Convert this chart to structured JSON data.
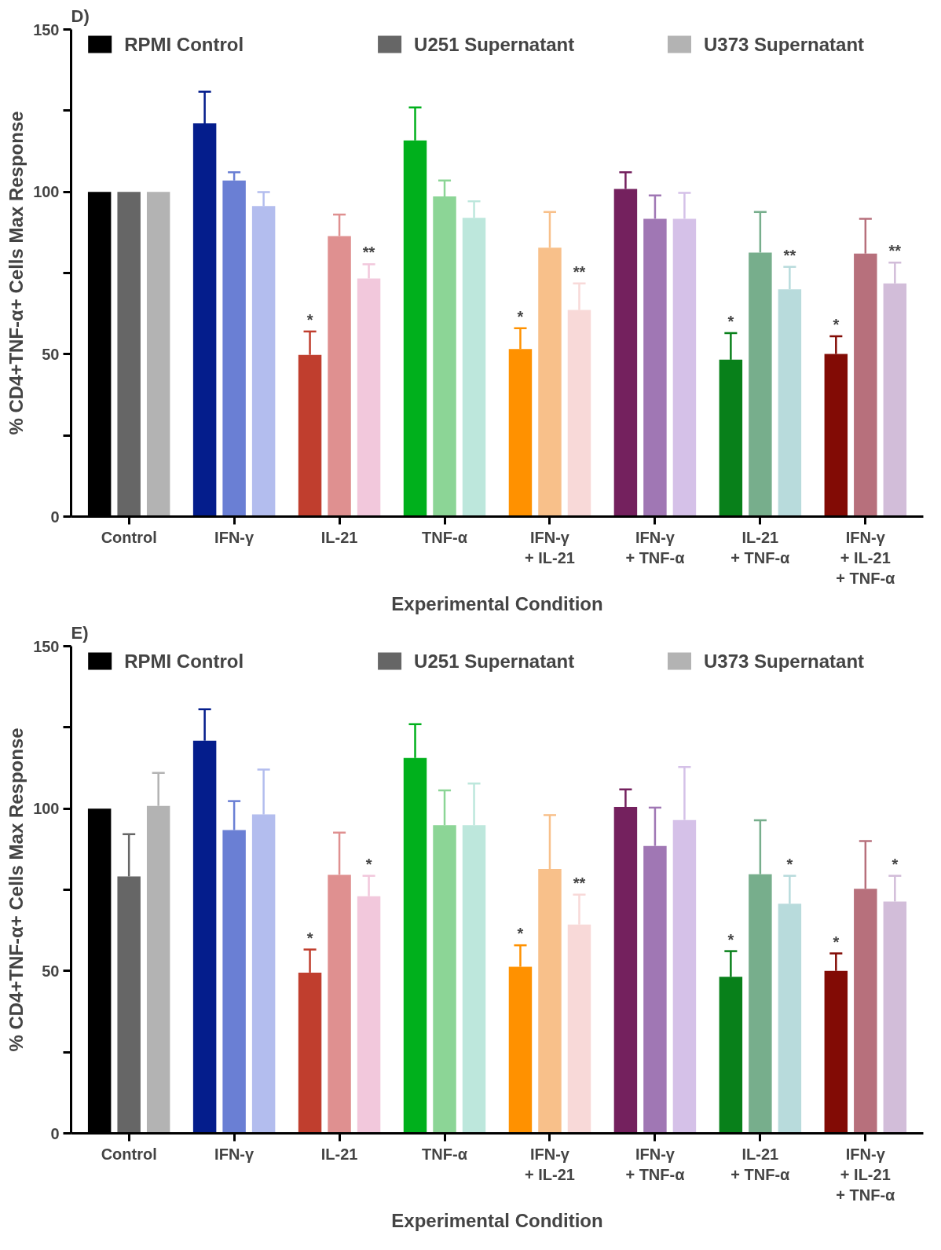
{
  "chart_data": [
    {
      "type": "bar",
      "title": "D)",
      "xlabel": "Experimental Condition",
      "ylabel": "% CD4+TNF-α+ Cells Max Response",
      "categories": [
        "Control",
        "IFN-γ",
        "IL-21",
        "TNF-α",
        "IFN-γ\n+ IL-21",
        "IFN-γ\n+ TNF-α",
        "IL-21\n+ TNF-α",
        "IFN-γ\n+ IL-21\n+ TNF-α"
      ],
      "ylim": [
        0,
        150
      ],
      "yticks": [
        0,
        {
          "value": 25,
          "label": null
        },
        50,
        {
          "value": 75,
          "label": null
        },
        100,
        {
          "value": 125,
          "label": null
        },
        150
      ],
      "grid": false,
      "legend": "top",
      "series": [
        {
          "name": "RPMI Control",
          "color": "#000000",
          "colors": [
            "#000000",
            "#041d8c",
            "#c03e2e",
            "#00b01c",
            "#ff9100",
            "#74215e",
            "#08801a",
            "#820b05"
          ],
          "values": [
            100,
            121.1,
            49.8,
            115.8,
            51.6,
            100.9,
            48.3,
            50.1
          ],
          "errors": [
            null,
            [
              121.1,
              130.8
            ],
            [
              49.8,
              57
            ],
            [
              115.8,
              126
            ],
            [
              51.6,
              58
            ],
            [
              100.9,
              106
            ],
            [
              48.3,
              56.5
            ],
            [
              50.1,
              55.5
            ]
          ],
          "value_labels": [
            null,
            null,
            "*",
            null,
            "*",
            null,
            "*",
            "*"
          ]
        },
        {
          "name": "U251 Supernatant",
          "color": "#666666",
          "colors": [
            "#666666",
            "#6a7fd4",
            "#df9090",
            "#8cd596",
            "#f8c08a",
            "#a077b4",
            "#77ae8c",
            "#b7707c"
          ],
          "values": [
            100,
            103.5,
            86.4,
            98.6,
            82.8,
            91.7,
            81.3,
            81
          ],
          "errors": [
            null,
            [
              103.5,
              106
            ],
            [
              86.4,
              93
            ],
            [
              98.6,
              103.5
            ],
            [
              82.8,
              93.8
            ],
            [
              91.7,
              98.9
            ],
            [
              81.3,
              93.8
            ],
            [
              81,
              91.7
            ]
          ]
        },
        {
          "name": "U373 Supernatant",
          "color": "#b3b3b3",
          "colors": [
            "#b3b3b3",
            "#b3bdee",
            "#f2c8dc",
            "#bde7dc",
            "#f8d9d8",
            "#d5c1e8",
            "#b8dbdc",
            "#d2bdd9"
          ],
          "values": [
            100,
            95.6,
            73.3,
            92,
            63.6,
            91.7,
            70,
            71.8
          ],
          "errors": [
            null,
            [
              95.6,
              99.9
            ],
            [
              73.3,
              77.7
            ],
            [
              92,
              97.1
            ],
            [
              63.6,
              71.8
            ],
            [
              91.7,
              99.7
            ],
            [
              70,
              76.9
            ],
            [
              71.8,
              78.2
            ]
          ],
          "value_labels": [
            null,
            null,
            "**",
            null,
            "**",
            null,
            "**",
            "**"
          ]
        }
      ]
    },
    {
      "type": "bar",
      "title": "E)",
      "xlabel": "Experimental Condition",
      "ylabel": "% CD4+TNF-α+ Cells Max Response",
      "categories": [
        "Control",
        "IFN-γ",
        "IL-21",
        "TNF-α",
        "IFN-γ\n+ IL-21",
        "IFN-γ\n+ TNF-α",
        "IL-21\n+ TNF-α",
        "IFN-γ\n+ IL-21\n+ TNF-α"
      ],
      "ylim": [
        0,
        150
      ],
      "yticks": [
        0,
        {
          "value": 25,
          "label": null
        },
        50,
        {
          "value": 75,
          "label": null
        },
        100,
        {
          "value": 125,
          "label": null
        },
        150
      ],
      "grid": false,
      "legend": "top",
      "series": [
        {
          "name": "RPMI Control",
          "color": "#000000",
          "colors": [
            "#000000",
            "#041d8c",
            "#c03e2e",
            "#00b01c",
            "#ff9100",
            "#74215e",
            "#08801a",
            "#820b05"
          ],
          "values": [
            100,
            120.9,
            49.5,
            115.6,
            51.3,
            100.5,
            48.2,
            50
          ],
          "errors": [
            null,
            [
              120.9,
              130.6
            ],
            [
              49.5,
              56.6
            ],
            [
              115.6,
              126
            ],
            [
              51.3,
              57.9
            ],
            [
              100.5,
              105.9
            ],
            [
              48.2,
              56.1
            ],
            [
              50,
              55.4
            ]
          ],
          "value_labels": [
            null,
            null,
            "*",
            null,
            "*",
            null,
            "*",
            "*"
          ]
        },
        {
          "name": "U251 Supernatant",
          "color": "#666666",
          "colors": [
            "#666666",
            "#6a7fd4",
            "#df9090",
            "#8cd596",
            "#f8c08a",
            "#a077b4",
            "#77ae8c",
            "#b7707c"
          ],
          "values": [
            79.1,
            93.4,
            79.6,
            94.9,
            81.4,
            88.5,
            79.8,
            75.3
          ],
          "errors": [
            [
              79.1,
              92.1
            ],
            [
              93.4,
              102.3
            ],
            [
              79.6,
              92.6
            ],
            [
              94.9,
              105.6
            ],
            [
              81.4,
              98
            ],
            [
              88.5,
              100.3
            ],
            [
              79.8,
              96.4
            ],
            [
              75.3,
              90
            ]
          ]
        },
        {
          "name": "U373 Supernatant",
          "color": "#b3b3b3",
          "colors": [
            "#b3b3b3",
            "#b3bdee",
            "#f2c8dc",
            "#bde7dc",
            "#f8d9d8",
            "#d5c1e8",
            "#b8dbdc",
            "#d2bdd9"
          ],
          "values": [
            100.8,
            98.2,
            73,
            94.9,
            64.3,
            96.5,
            70.7,
            71.4
          ],
          "errors": [
            [
              100.8,
              111
            ],
            [
              98.2,
              112
            ],
            [
              73,
              79.3
            ],
            [
              94.9,
              107.7
            ],
            [
              64.3,
              73.5
            ],
            [
              96.5,
              112.8
            ],
            [
              70.7,
              79.3
            ],
            [
              71.4,
              79.3
            ]
          ],
          "value_labels": [
            null,
            null,
            "*",
            null,
            "**",
            null,
            "*",
            "*"
          ]
        }
      ]
    }
  ]
}
